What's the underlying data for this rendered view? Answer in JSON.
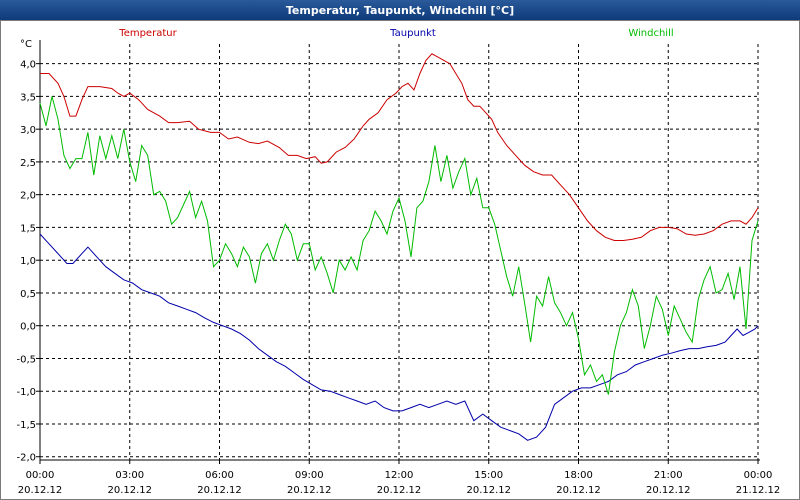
{
  "window": {
    "title": "Temperatur, Taupunkt, Windchill [°C]"
  },
  "chart_data": {
    "type": "line",
    "title": "Temperatur, Taupunkt, Windchill [°C]",
    "ylabel": "°C",
    "ylim": [
      -2.0,
      4.3
    ],
    "grid": true,
    "yticks": [
      "4,0",
      "3,5",
      "3,0",
      "2,5",
      "2,0",
      "1,5",
      "1,0",
      "0,5",
      "0,0",
      "-0,5",
      "-1,0",
      "-1,5",
      "-2,0"
    ],
    "ytick_values": [
      4.0,
      3.5,
      3.0,
      2.5,
      2.0,
      1.5,
      1.0,
      0.5,
      0.0,
      -0.5,
      -1.0,
      -1.5,
      -2.0
    ],
    "xticks": [
      {
        "time": "00:00",
        "date": "20.12.12",
        "h": 0
      },
      {
        "time": "03:00",
        "date": "20.12.12",
        "h": 3
      },
      {
        "time": "06:00",
        "date": "20.12.12",
        "h": 6
      },
      {
        "time": "09:00",
        "date": "20.12.12",
        "h": 9
      },
      {
        "time": "12:00",
        "date": "20.12.12",
        "h": 12
      },
      {
        "time": "15:00",
        "date": "20.12.12",
        "h": 15
      },
      {
        "time": "18:00",
        "date": "20.12.12",
        "h": 18
      },
      {
        "time": "21:00",
        "date": "20.12.12",
        "h": 21
      },
      {
        "time": "00:00",
        "date": "21.12.12",
        "h": 24
      }
    ],
    "series": [
      {
        "name": "Temperatur",
        "color": "#cc0000",
        "points": [
          [
            0,
            3.85
          ],
          [
            0.3,
            3.85
          ],
          [
            0.6,
            3.7
          ],
          [
            0.8,
            3.5
          ],
          [
            1.0,
            3.2
          ],
          [
            1.2,
            3.2
          ],
          [
            1.4,
            3.45
          ],
          [
            1.6,
            3.65
          ],
          [
            2.0,
            3.65
          ],
          [
            2.4,
            3.62
          ],
          [
            2.6,
            3.55
          ],
          [
            2.8,
            3.5
          ],
          [
            3.0,
            3.55
          ],
          [
            3.3,
            3.45
          ],
          [
            3.6,
            3.3
          ],
          [
            4.0,
            3.2
          ],
          [
            4.3,
            3.1
          ],
          [
            4.6,
            3.1
          ],
          [
            5.0,
            3.12
          ],
          [
            5.3,
            3.0
          ],
          [
            5.7,
            2.95
          ],
          [
            6.0,
            2.95
          ],
          [
            6.3,
            2.85
          ],
          [
            6.6,
            2.88
          ],
          [
            7.0,
            2.8
          ],
          [
            7.3,
            2.78
          ],
          [
            7.6,
            2.82
          ],
          [
            8.0,
            2.72
          ],
          [
            8.3,
            2.6
          ],
          [
            8.6,
            2.6
          ],
          [
            8.9,
            2.55
          ],
          [
            9.2,
            2.58
          ],
          [
            9.4,
            2.48
          ],
          [
            9.6,
            2.5
          ],
          [
            9.9,
            2.65
          ],
          [
            10.2,
            2.72
          ],
          [
            10.5,
            2.85
          ],
          [
            10.8,
            3.05
          ],
          [
            11.0,
            3.15
          ],
          [
            11.3,
            3.25
          ],
          [
            11.6,
            3.45
          ],
          [
            11.9,
            3.55
          ],
          [
            12.1,
            3.65
          ],
          [
            12.3,
            3.7
          ],
          [
            12.5,
            3.6
          ],
          [
            12.7,
            3.85
          ],
          [
            12.9,
            4.05
          ],
          [
            13.1,
            4.15
          ],
          [
            13.3,
            4.1
          ],
          [
            13.5,
            4.05
          ],
          [
            13.7,
            4.0
          ],
          [
            13.9,
            3.85
          ],
          [
            14.1,
            3.7
          ],
          [
            14.3,
            3.45
          ],
          [
            14.5,
            3.35
          ],
          [
            14.7,
            3.35
          ],
          [
            14.9,
            3.25
          ],
          [
            15.1,
            3.15
          ],
          [
            15.3,
            2.95
          ],
          [
            15.6,
            2.75
          ],
          [
            15.9,
            2.6
          ],
          [
            16.2,
            2.45
          ],
          [
            16.5,
            2.35
          ],
          [
            16.8,
            2.3
          ],
          [
            17.1,
            2.3
          ],
          [
            17.4,
            2.15
          ],
          [
            17.7,
            2.0
          ],
          [
            18.0,
            1.8
          ],
          [
            18.3,
            1.6
          ],
          [
            18.6,
            1.45
          ],
          [
            18.9,
            1.35
          ],
          [
            19.2,
            1.3
          ],
          [
            19.5,
            1.3
          ],
          [
            19.8,
            1.32
          ],
          [
            20.1,
            1.35
          ],
          [
            20.4,
            1.45
          ],
          [
            20.7,
            1.5
          ],
          [
            21.0,
            1.5
          ],
          [
            21.3,
            1.48
          ],
          [
            21.6,
            1.4
          ],
          [
            21.9,
            1.38
          ],
          [
            22.2,
            1.4
          ],
          [
            22.5,
            1.45
          ],
          [
            22.8,
            1.55
          ],
          [
            23.1,
            1.6
          ],
          [
            23.4,
            1.6
          ],
          [
            23.6,
            1.55
          ],
          [
            23.8,
            1.65
          ],
          [
            24.0,
            1.8
          ]
        ]
      },
      {
        "name": "Taupunkt",
        "color": "#0000aa",
        "points": [
          [
            0,
            1.4
          ],
          [
            0.3,
            1.25
          ],
          [
            0.6,
            1.1
          ],
          [
            0.9,
            0.95
          ],
          [
            1.1,
            0.95
          ],
          [
            1.4,
            1.1
          ],
          [
            1.6,
            1.2
          ],
          [
            1.9,
            1.05
          ],
          [
            2.2,
            0.9
          ],
          [
            2.5,
            0.8
          ],
          [
            2.8,
            0.7
          ],
          [
            3.1,
            0.65
          ],
          [
            3.4,
            0.55
          ],
          [
            3.7,
            0.5
          ],
          [
            4.0,
            0.45
          ],
          [
            4.3,
            0.35
          ],
          [
            4.6,
            0.3
          ],
          [
            4.9,
            0.25
          ],
          [
            5.2,
            0.2
          ],
          [
            5.5,
            0.12
          ],
          [
            5.8,
            0.05
          ],
          [
            6.1,
            0.0
          ],
          [
            6.4,
            -0.05
          ],
          [
            6.7,
            -0.12
          ],
          [
            7.0,
            -0.22
          ],
          [
            7.3,
            -0.35
          ],
          [
            7.6,
            -0.45
          ],
          [
            7.9,
            -0.55
          ],
          [
            8.2,
            -0.62
          ],
          [
            8.5,
            -0.72
          ],
          [
            8.8,
            -0.82
          ],
          [
            9.1,
            -0.9
          ],
          [
            9.4,
            -0.98
          ],
          [
            9.7,
            -1.0
          ],
          [
            10.0,
            -1.05
          ],
          [
            10.3,
            -1.1
          ],
          [
            10.6,
            -1.15
          ],
          [
            10.9,
            -1.2
          ],
          [
            11.2,
            -1.15
          ],
          [
            11.5,
            -1.25
          ],
          [
            11.8,
            -1.3
          ],
          [
            12.1,
            -1.3
          ],
          [
            12.4,
            -1.25
          ],
          [
            12.7,
            -1.2
          ],
          [
            13.0,
            -1.25
          ],
          [
            13.3,
            -1.2
          ],
          [
            13.6,
            -1.15
          ],
          [
            13.9,
            -1.2
          ],
          [
            14.2,
            -1.15
          ],
          [
            14.5,
            -1.45
          ],
          [
            14.8,
            -1.35
          ],
          [
            15.1,
            -1.45
          ],
          [
            15.4,
            -1.55
          ],
          [
            15.7,
            -1.6
          ],
          [
            16.0,
            -1.65
          ],
          [
            16.3,
            -1.75
          ],
          [
            16.6,
            -1.7
          ],
          [
            16.9,
            -1.55
          ],
          [
            17.2,
            -1.2
          ],
          [
            17.5,
            -1.1
          ],
          [
            17.8,
            -1.0
          ],
          [
            18.1,
            -0.95
          ],
          [
            18.4,
            -0.95
          ],
          [
            18.7,
            -0.9
          ],
          [
            19.0,
            -0.85
          ],
          [
            19.3,
            -0.75
          ],
          [
            19.6,
            -0.7
          ],
          [
            19.9,
            -0.6
          ],
          [
            20.2,
            -0.55
          ],
          [
            20.5,
            -0.5
          ],
          [
            20.8,
            -0.45
          ],
          [
            21.1,
            -0.42
          ],
          [
            21.4,
            -0.38
          ],
          [
            21.7,
            -0.35
          ],
          [
            22.0,
            -0.35
          ],
          [
            22.3,
            -0.32
          ],
          [
            22.6,
            -0.3
          ],
          [
            22.9,
            -0.25
          ],
          [
            23.1,
            -0.15
          ],
          [
            23.3,
            -0.05
          ],
          [
            23.5,
            -0.15
          ],
          [
            23.7,
            -0.1
          ],
          [
            23.9,
            -0.05
          ],
          [
            24.0,
            0.0
          ]
        ]
      },
      {
        "name": "Windchill",
        "color": "#00bb00",
        "points": [
          [
            0,
            3.4
          ],
          [
            0.2,
            3.05
          ],
          [
            0.4,
            3.5
          ],
          [
            0.6,
            3.15
          ],
          [
            0.8,
            2.6
          ],
          [
            1.0,
            2.4
          ],
          [
            1.2,
            2.55
          ],
          [
            1.4,
            2.55
          ],
          [
            1.6,
            2.95
          ],
          [
            1.8,
            2.3
          ],
          [
            2.0,
            2.9
          ],
          [
            2.2,
            2.55
          ],
          [
            2.4,
            2.9
          ],
          [
            2.6,
            2.55
          ],
          [
            2.8,
            3.0
          ],
          [
            3.0,
            2.5
          ],
          [
            3.2,
            2.2
          ],
          [
            3.4,
            2.75
          ],
          [
            3.6,
            2.6
          ],
          [
            3.8,
            2.0
          ],
          [
            4.0,
            2.05
          ],
          [
            4.2,
            1.9
          ],
          [
            4.4,
            1.55
          ],
          [
            4.6,
            1.65
          ],
          [
            4.8,
            1.85
          ],
          [
            5.0,
            2.05
          ],
          [
            5.2,
            1.65
          ],
          [
            5.4,
            1.9
          ],
          [
            5.6,
            1.6
          ],
          [
            5.8,
            0.9
          ],
          [
            6.0,
            1.0
          ],
          [
            6.2,
            1.25
          ],
          [
            6.4,
            1.1
          ],
          [
            6.6,
            0.9
          ],
          [
            6.8,
            1.2
          ],
          [
            7.0,
            1.05
          ],
          [
            7.2,
            0.65
          ],
          [
            7.4,
            1.1
          ],
          [
            7.6,
            1.25
          ],
          [
            7.8,
            1.0
          ],
          [
            8.0,
            1.3
          ],
          [
            8.2,
            1.55
          ],
          [
            8.4,
            1.4
          ],
          [
            8.6,
            1.0
          ],
          [
            8.8,
            1.25
          ],
          [
            9.0,
            1.25
          ],
          [
            9.2,
            0.85
          ],
          [
            9.4,
            1.05
          ],
          [
            9.6,
            0.8
          ],
          [
            9.8,
            0.5
          ],
          [
            10.0,
            1.0
          ],
          [
            10.2,
            0.85
          ],
          [
            10.4,
            1.05
          ],
          [
            10.6,
            0.85
          ],
          [
            10.8,
            1.3
          ],
          [
            11.0,
            1.45
          ],
          [
            11.2,
            1.75
          ],
          [
            11.4,
            1.6
          ],
          [
            11.6,
            1.4
          ],
          [
            11.8,
            1.75
          ],
          [
            12.0,
            1.95
          ],
          [
            12.2,
            1.6
          ],
          [
            12.4,
            1.05
          ],
          [
            12.6,
            1.8
          ],
          [
            12.8,
            1.9
          ],
          [
            13.0,
            2.2
          ],
          [
            13.2,
            2.75
          ],
          [
            13.4,
            2.2
          ],
          [
            13.6,
            2.6
          ],
          [
            13.8,
            2.1
          ],
          [
            14.0,
            2.35
          ],
          [
            14.2,
            2.55
          ],
          [
            14.4,
            2.0
          ],
          [
            14.6,
            2.25
          ],
          [
            14.8,
            1.8
          ],
          [
            15.0,
            1.8
          ],
          [
            15.2,
            1.55
          ],
          [
            15.4,
            1.15
          ],
          [
            15.6,
            0.75
          ],
          [
            15.8,
            0.45
          ],
          [
            16.0,
            0.9
          ],
          [
            16.2,
            0.35
          ],
          [
            16.4,
            -0.25
          ],
          [
            16.6,
            0.45
          ],
          [
            16.8,
            0.3
          ],
          [
            17.0,
            0.75
          ],
          [
            17.2,
            0.35
          ],
          [
            17.4,
            0.2
          ],
          [
            17.6,
            0.0
          ],
          [
            17.8,
            0.2
          ],
          [
            18.0,
            -0.2
          ],
          [
            18.2,
            -0.75
          ],
          [
            18.4,
            -0.6
          ],
          [
            18.6,
            -0.85
          ],
          [
            18.8,
            -0.75
          ],
          [
            19.0,
            -1.05
          ],
          [
            19.2,
            -0.4
          ],
          [
            19.4,
            0.0
          ],
          [
            19.6,
            0.2
          ],
          [
            19.8,
            0.55
          ],
          [
            20.0,
            0.3
          ],
          [
            20.2,
            -0.35
          ],
          [
            20.4,
            0.0
          ],
          [
            20.6,
            0.45
          ],
          [
            20.8,
            0.25
          ],
          [
            21.0,
            -0.15
          ],
          [
            21.2,
            0.3
          ],
          [
            21.4,
            0.1
          ],
          [
            21.6,
            -0.1
          ],
          [
            21.8,
            -0.25
          ],
          [
            22.0,
            0.4
          ],
          [
            22.2,
            0.7
          ],
          [
            22.4,
            0.9
          ],
          [
            22.6,
            0.5
          ],
          [
            22.8,
            0.55
          ],
          [
            23.0,
            0.8
          ],
          [
            23.2,
            0.4
          ],
          [
            23.4,
            0.9
          ],
          [
            23.6,
            -0.05
          ],
          [
            23.8,
            1.3
          ],
          [
            24.0,
            1.6
          ]
        ]
      }
    ]
  }
}
